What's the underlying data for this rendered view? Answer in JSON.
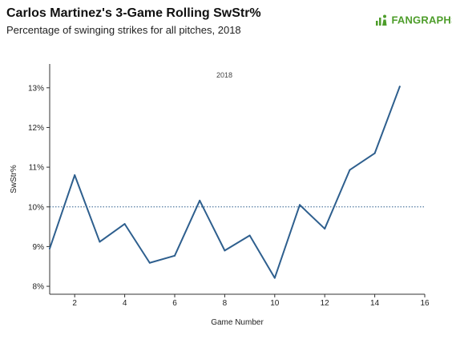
{
  "header": {
    "title": "Carlos Martinez's 3-Game Rolling SwStr%",
    "subtitle": "Percentage of swinging strikes for all pitches, 2018",
    "brand": "FANGRAPHS",
    "brand_icon": "fangraphs-logo-icon",
    "brand_color": "#4d9d2a"
  },
  "chart_data": {
    "type": "line",
    "title": "Carlos Martinez's 3-Game Rolling SwStr%",
    "subtitle": "Percentage of swinging strikes for all pitches, 2018",
    "xlabel": "Game Number",
    "ylabel": "SwStr%",
    "annotation": "2018",
    "xlim": [
      1,
      16
    ],
    "ylim": [
      7.8,
      13.6
    ],
    "x_ticks": [
      2,
      4,
      6,
      8,
      10,
      12,
      14,
      16
    ],
    "y_ticks": [
      8,
      9,
      10,
      11,
      12,
      13
    ],
    "y_tick_labels": [
      "8%",
      "9%",
      "10%",
      "11%",
      "12%",
      "13%"
    ],
    "reference_line": {
      "y": 10.0,
      "style": "dotted"
    },
    "grid": false,
    "series": [
      {
        "x": [
          1,
          2,
          3,
          4,
          5,
          6,
          7,
          8,
          9,
          10,
          11,
          12,
          13,
          14,
          15
        ],
        "values": [
          8.95,
          10.8,
          9.12,
          9.57,
          8.59,
          8.77,
          10.16,
          8.9,
          9.28,
          8.21,
          10.05,
          9.45,
          10.93,
          11.35,
          13.03
        ],
        "color": "#2e5f8e"
      }
    ]
  }
}
